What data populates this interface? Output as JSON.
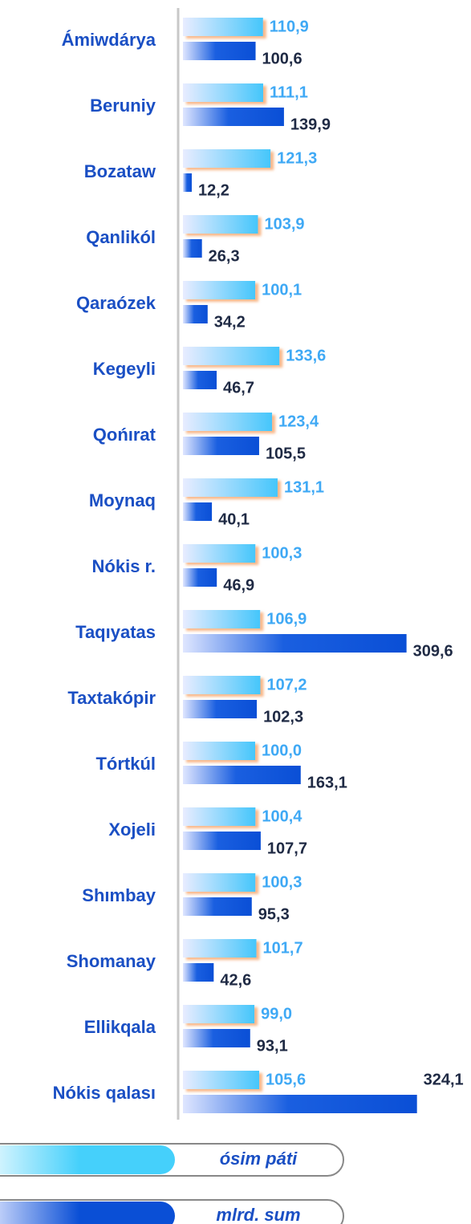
{
  "chart_data": {
    "type": "bar",
    "orientation": "horizontal",
    "categories": [
      "Ámiwdárya",
      "Beruniy",
      "Bozataw",
      "Qanlikól",
      "Qaraózek",
      "Kegeyli",
      "Qońırat",
      "Moynaq",
      "Nókis r.",
      "Taqıyatas",
      "Taxtakópir",
      "Tórtkúl",
      "Xojeli",
      "Shımbay",
      "Shomanay",
      "Ellikqala",
      "Nókis qalası"
    ],
    "series": [
      {
        "name": "ósim páti",
        "color": "#45c6fb",
        "values": [
          110.9,
          111.1,
          121.3,
          103.9,
          100.1,
          133.6,
          123.4,
          131.1,
          100.3,
          106.9,
          107.2,
          100.0,
          100.4,
          100.3,
          101.7,
          99.0,
          105.6
        ],
        "value_labels": [
          "110,9",
          "111,1",
          "121,3",
          "103,9",
          "100,1",
          "133,6",
          "123,4",
          "131,1",
          "100,3",
          "106,9",
          "107,2",
          "100,0",
          "100,4",
          "100,3",
          "101,7",
          "99,0",
          "105,6"
        ]
      },
      {
        "name": "mlrd. sum",
        "color": "#0a4fd6",
        "values": [
          100.6,
          139.9,
          12.2,
          26.3,
          34.2,
          46.7,
          105.5,
          40.1,
          46.9,
          309.6,
          102.3,
          163.1,
          107.7,
          95.3,
          42.6,
          93.1,
          324.1
        ],
        "value_labels": [
          "100,6",
          "139,9",
          "12,2",
          "26,3",
          "34,2",
          "46,7",
          "105,5",
          "40,1",
          "46,9",
          "309,6",
          "102,3",
          "163,1",
          "107,7",
          "95,3",
          "42,6",
          "93,1",
          "324,1"
        ]
      }
    ],
    "xlim": [
      0,
      360
    ]
  }
}
